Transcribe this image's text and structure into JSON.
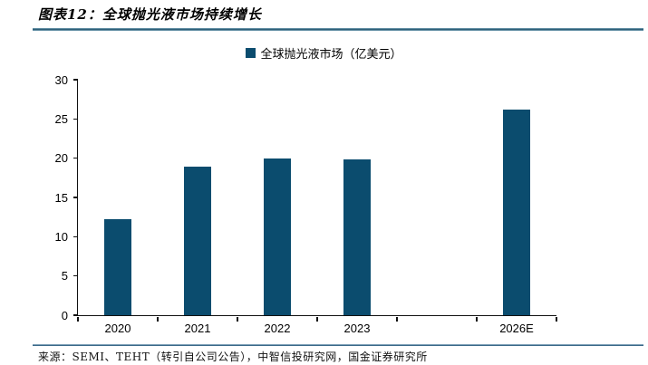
{
  "header": {
    "title": "图表12：全球抛光液市场持续增长"
  },
  "legend": {
    "label": "全球抛光液市场（亿美元）"
  },
  "footer": {
    "source": "来源：SEMI、TEHT（转引自公司公告），中智信投研究网，国金证券研究所"
  },
  "colors": {
    "bar": "#0b4c6e",
    "axis": "#111111",
    "title_rule": "#1f506a",
    "footer_rule": "#1b4e73"
  },
  "chart_data": {
    "type": "bar",
    "title": "图表12：全球抛光液市场持续增长",
    "legend": [
      "全球抛光液市场（亿美元）"
    ],
    "legend_position": "top-center",
    "categories": [
      "2020",
      "2021",
      "2022",
      "2023",
      "2026E"
    ],
    "values": [
      12.2,
      18.9,
      20.0,
      19.8,
      26.2
    ],
    "slot_index": [
      0,
      1,
      2,
      3,
      5
    ],
    "num_slots": 6,
    "xlabel": "",
    "ylabel": "",
    "ylim": [
      0,
      30
    ],
    "yticks": [
      0,
      5,
      10,
      15,
      20,
      25,
      30
    ],
    "grid": false,
    "bar_color": "#0b4c6e",
    "source_note": "来源：SEMI、TEHT（转引自公司公告），中智信投研究网，国金证券研究所"
  }
}
